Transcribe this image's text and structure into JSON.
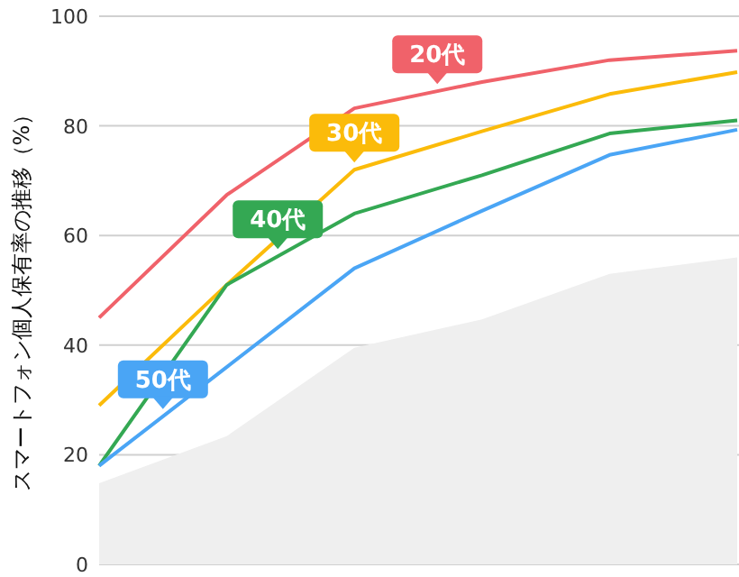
{
  "chart_data": {
    "type": "line",
    "ylabel": "スマートフォン個人保有率の推移（%）",
    "categories": [
      null,
      null,
      null,
      null,
      null,
      null
    ],
    "ylim": [
      0,
      100
    ],
    "yticks": [
      0,
      20,
      40,
      60,
      80,
      100
    ],
    "grid": "y",
    "marker": "none",
    "line_style": "solid",
    "series": [
      {
        "type": "area",
        "color": "#efefef",
        "values": [
          14.8,
          23.4,
          39.5,
          44.7,
          53,
          56
        ]
      },
      {
        "name": "20代",
        "color": "#f0626a",
        "values": [
          45,
          67.4,
          83.2,
          88,
          92,
          93.7
        ]
      },
      {
        "name": "30代",
        "color": "#fbbb0a",
        "values": [
          29,
          51,
          72,
          79,
          85.8,
          89.8
        ]
      },
      {
        "name": "40代",
        "color": "#34a853",
        "values": [
          18,
          51,
          64,
          71,
          78.6,
          81
        ]
      },
      {
        "name": "50代",
        "color": "#4aa5f5",
        "values": [
          18,
          36,
          54,
          64.5,
          74.7,
          79.3
        ]
      }
    ]
  }
}
